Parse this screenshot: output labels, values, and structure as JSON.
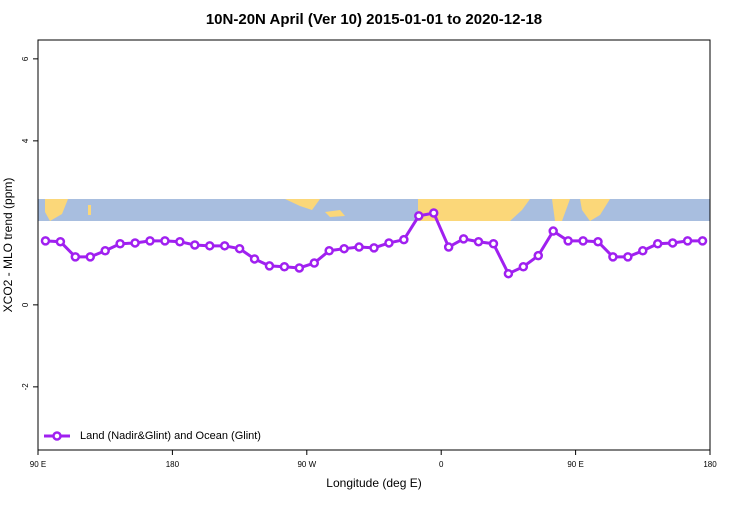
{
  "chart_data": {
    "type": "line",
    "title": "10N-20N April (Ver 10)   2015-01-01 to 2020-12-18",
    "x_label": "Longitude (deg E)",
    "y_label": "XCO2 - MLO trend (ppm)",
    "x": [
      95,
      105,
      115,
      125,
      135,
      145,
      155,
      165,
      175,
      185,
      195,
      205,
      215,
      225,
      235,
      245,
      255,
      265,
      275,
      285,
      295,
      305,
      315,
      325,
      335,
      345,
      355,
      365,
      375,
      385,
      395,
      405,
      415,
      425,
      435,
      445,
      455,
      465,
      475,
      485,
      495,
      505,
      515,
      525,
      535
    ],
    "series": [
      {
        "name": "Land (Nadir&Glint) and Ocean (Glint)",
        "color": "#a020f0",
        "values": [
          1.56,
          1.54,
          1.17,
          1.17,
          1.32,
          1.49,
          1.51,
          1.56,
          1.56,
          1.54,
          1.46,
          1.44,
          1.44,
          1.37,
          1.12,
          0.95,
          0.93,
          0.9,
          1.02,
          1.32,
          1.37,
          1.41,
          1.39,
          1.51,
          1.59,
          2.17,
          2.24,
          1.41,
          1.61,
          1.54,
          1.49,
          0.76,
          0.93,
          1.2,
          1.8,
          1.56,
          1.56,
          1.54,
          1.17,
          1.17,
          1.32,
          1.49,
          1.51,
          1.56,
          1.56
        ]
      }
    ],
    "xlim": [
      90,
      540
    ],
    "xticks": [
      {
        "value": 90,
        "label": "90 E"
      },
      {
        "value": 180,
        "label": "180"
      },
      {
        "value": 270,
        "label": "90 W"
      },
      {
        "value": 360,
        "label": "0"
      },
      {
        "value": 450,
        "label": "90 E"
      },
      {
        "value": 540,
        "label": "180"
      }
    ],
    "ylim": [
      -3.54,
      6.46
    ],
    "yticks": [
      -2,
      0,
      4,
      6
    ],
    "legend": "bottom-left"
  }
}
